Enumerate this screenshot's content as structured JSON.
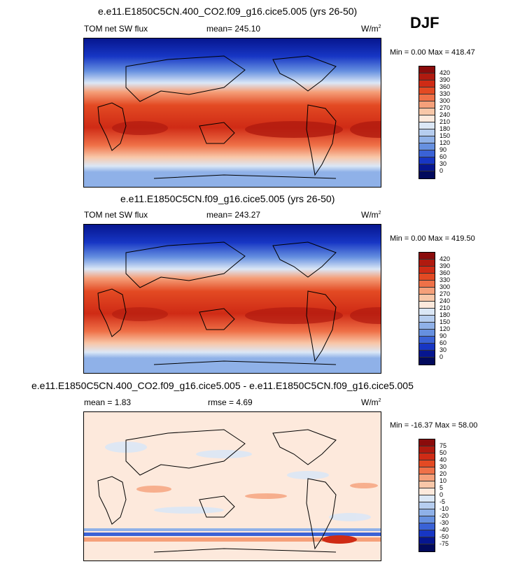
{
  "season": "DJF",
  "panels": [
    {
      "title": "e.e11.E1850C5CN.400_CO2.f09_g16.cice5.005 (yrs 26-50)",
      "left_label": "TOM net SW flux",
      "center_label": "mean= 245.10",
      "units": "W/m",
      "units_exp": "2",
      "minmax": "Min =   0.00 Max = 418.47",
      "colorbar": {
        "ticks": [
          "420",
          "390",
          "360",
          "330",
          "300",
          "270",
          "240",
          "210",
          "180",
          "150",
          "120",
          "90",
          "60",
          "30",
          "0"
        ],
        "colors": [
          "#8a0b0b",
          "#b01a0f",
          "#cf2b15",
          "#e34a23",
          "#ef7148",
          "#f5a07a",
          "#f8c7a8",
          "#fde9dc",
          "#dbe7f6",
          "#b6cdef",
          "#8fb1e8",
          "#6690e0",
          "#3a62d6",
          "#1736c4",
          "#06168f",
          "#020a5c"
        ]
      }
    },
    {
      "title": "e.e11.E1850C5CN.f09_g16.cice5.005 (yrs 26-50)",
      "left_label": "TOM net SW flux",
      "center_label": "mean= 243.27",
      "units": "W/m",
      "units_exp": "2",
      "minmax": "Min =   0.00 Max = 419.50",
      "colorbar": {
        "ticks": [
          "420",
          "390",
          "360",
          "330",
          "300",
          "270",
          "240",
          "210",
          "180",
          "150",
          "120",
          "90",
          "60",
          "30",
          "0"
        ],
        "colors": [
          "#8a0b0b",
          "#b01a0f",
          "#cf2b15",
          "#e34a23",
          "#ef7148",
          "#f5a07a",
          "#f8c7a8",
          "#fde9dc",
          "#dbe7f6",
          "#b6cdef",
          "#8fb1e8",
          "#6690e0",
          "#3a62d6",
          "#1736c4",
          "#06168f",
          "#020a5c"
        ]
      }
    },
    {
      "title": "e.e11.E1850C5CN.400_CO2.f09_g16.cice5.005 - e.e11.E1850C5CN.f09_g16.cice5.005",
      "left_label": "mean =   1.83",
      "center_label": "rmse =   4.69",
      "units": "W/m",
      "units_exp": "2",
      "minmax": "Min = -16.37 Max =  58.00",
      "colorbar": {
        "ticks": [
          "75",
          "50",
          "40",
          "30",
          "20",
          "10",
          "5",
          "0",
          "-5",
          "-10",
          "-20",
          "-30",
          "-40",
          "-50",
          "-75"
        ],
        "colors": [
          "#8a0b0b",
          "#b01a0f",
          "#cf2b15",
          "#e34a23",
          "#ef7148",
          "#f5a07a",
          "#f8c7a8",
          "#fde9dc",
          "#dbe7f6",
          "#b6cdef",
          "#8fb1e8",
          "#6690e0",
          "#3a62d6",
          "#1736c4",
          "#06168f",
          "#020a5c"
        ]
      }
    }
  ]
}
